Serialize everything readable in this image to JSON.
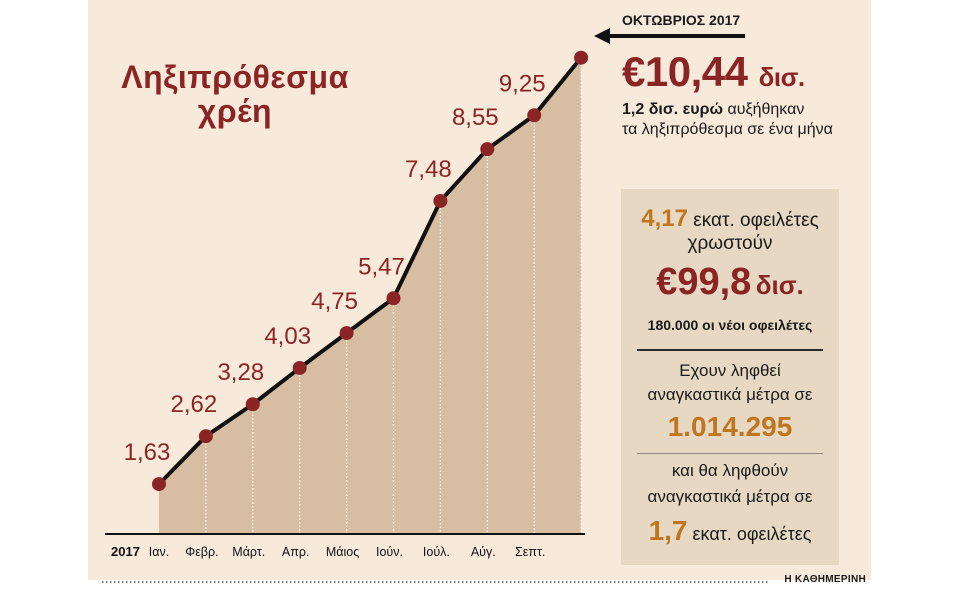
{
  "chart_data": {
    "type": "area",
    "title": "Ληξιπρόθεσμα χρέη",
    "year_label": "2017",
    "categories": [
      "Ιαν.",
      "Φεβρ.",
      "Μάρτ.",
      "Απρ.",
      "Μάιος",
      "Ιούν.",
      "Ιούλ.",
      "Αύγ.",
      "Σεπτ.",
      "Οκτ."
    ],
    "values": [
      1.63,
      2.62,
      3.28,
      4.03,
      4.75,
      5.47,
      7.48,
      8.55,
      9.25,
      10.44
    ],
    "value_labels": [
      "1,63",
      "2,62",
      "3,28",
      "4,03",
      "4,75",
      "5,47",
      "7,48",
      "8,55",
      "9,25",
      ""
    ],
    "ylim": [
      0,
      11
    ],
    "grid": false,
    "legend": "none",
    "colors": {
      "area": "#d7bea3",
      "line": "#111111",
      "marker": "#8b2525",
      "label": "#8b2525",
      "background": "#f8eadb"
    }
  },
  "highlight": {
    "month_label": "ΟΚΤΩΒΡΙΟΣ 2017",
    "value": "€10,44",
    "unit": "δισ.",
    "note_bold": "1,2 δισ. ευρώ",
    "note_rest1": " αυξήθηκαν",
    "note_line2": "τα ληξιπρόθεσμα σε ένα μήνα"
  },
  "panel": {
    "debtors_count": "4,17",
    "debtors_text": "εκατ. οφειλέτες",
    "owe_text": "χρωστούν",
    "total": "€99,8",
    "total_unit": "δισ.",
    "new_debtors": "180.000 οι νέοι οφειλέτες",
    "taken_line1": "Εχουν ληφθεί",
    "taken_line2": "αναγκαστικά μέτρα σε",
    "taken_value": "1.014.295",
    "future_line1": "και θα ληφθούν",
    "future_line2": "αναγκαστικά μέτρα σε",
    "future_value": "1,7",
    "future_unit": "εκατ. οφειλέτες"
  },
  "credit": "Η ΚΑΘΗΜΕΡΙΝΗ",
  "colors": {
    "dark_red": "#8b2525",
    "orange": "#c0751f",
    "panel_bg": "#e7d8c3"
  }
}
